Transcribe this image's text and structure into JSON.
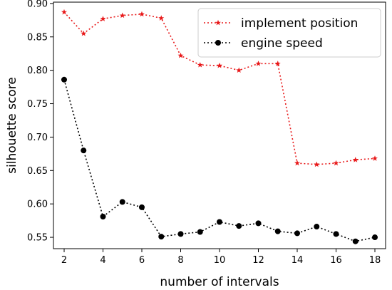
{
  "chart_data": {
    "type": "line",
    "title": "",
    "xlabel": "number of intervals",
    "ylabel": "silhouette score",
    "x": [
      2,
      3,
      4,
      5,
      6,
      7,
      8,
      9,
      10,
      11,
      12,
      13,
      14,
      15,
      16,
      17,
      18
    ],
    "xlim": [
      1.45,
      18.55
    ],
    "ylim": [
      0.533,
      0.902
    ],
    "xticks": [
      2,
      4,
      6,
      8,
      10,
      12,
      14,
      16,
      18
    ],
    "xtick_labels": [
      "2",
      "4",
      "6",
      "8",
      "10",
      "12",
      "14",
      "16",
      "18"
    ],
    "yticks": [
      0.55,
      0.6,
      0.65,
      0.7,
      0.75,
      0.8,
      0.85,
      0.9
    ],
    "ytick_labels": [
      "0.55",
      "0.60",
      "0.65",
      "0.70",
      "0.75",
      "0.80",
      "0.85",
      "0.90"
    ],
    "grid": false,
    "legend_position": "top-right",
    "series": [
      {
        "name": "implement position",
        "color": "#e8191a",
        "marker": "star",
        "line_style": "dotted",
        "values": [
          0.887,
          0.855,
          0.877,
          0.882,
          0.884,
          0.878,
          0.822,
          0.808,
          0.807,
          0.8,
          0.81,
          0.81,
          0.661,
          0.659,
          0.661,
          0.666,
          0.668
        ]
      },
      {
        "name": "engine speed",
        "color": "#000000",
        "marker": "circle",
        "line_style": "dotted",
        "values": [
          0.786,
          0.68,
          0.581,
          0.603,
          0.595,
          0.551,
          0.555,
          0.558,
          0.573,
          0.567,
          0.571,
          0.559,
          0.556,
          0.566,
          0.555,
          0.544,
          0.55
        ]
      }
    ]
  }
}
